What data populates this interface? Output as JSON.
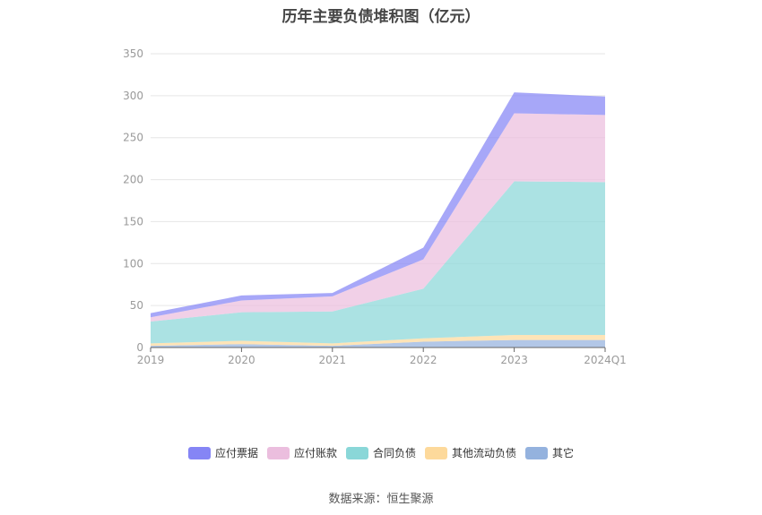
{
  "chart_data": {
    "type": "area",
    "stacked": true,
    "title": "历年主要负债堆积图（亿元）",
    "categories": [
      "2019",
      "2020",
      "2021",
      "2022",
      "2023",
      "2024Q1"
    ],
    "ylim": [
      0,
      350
    ],
    "yticks": [
      0,
      50,
      100,
      150,
      200,
      250,
      300,
      350
    ],
    "grid": true,
    "legend_position": "bottom",
    "series": [
      {
        "name": "其它",
        "color": "#94b2de",
        "values": [
          2,
          4,
          2,
          7,
          9,
          9
        ]
      },
      {
        "name": "其他流动负债",
        "color": "#fdd99b",
        "values": [
          3,
          4,
          3,
          4,
          6,
          6
        ]
      },
      {
        "name": "合同负债",
        "color": "#8ad7d8",
        "values": [
          26,
          34,
          38,
          59,
          183,
          182
        ]
      },
      {
        "name": "应付账款",
        "color": "#ebbede",
        "values": [
          5,
          14,
          18,
          35,
          81,
          80
        ]
      },
      {
        "name": "应付票据",
        "color": "#8585f5",
        "values": [
          5,
          6,
          4,
          14,
          25,
          22
        ]
      }
    ]
  },
  "legend_order": [
    "应付票据",
    "应付账款",
    "合同负债",
    "其他流动负债",
    "其它"
  ],
  "source": "数据来源：恒生聚源"
}
